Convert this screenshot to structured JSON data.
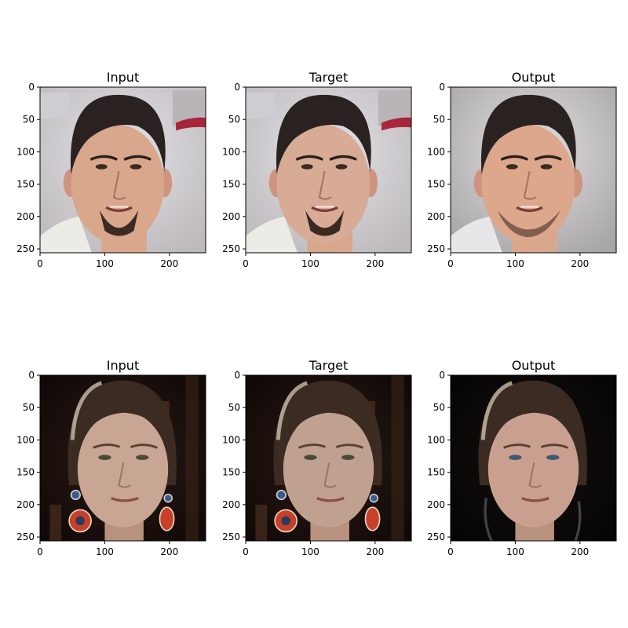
{
  "figure": {
    "rows": [
      {
        "subject": "man",
        "panels": [
          {
            "title": "Input",
            "variant": "input"
          },
          {
            "title": "Target",
            "variant": "target"
          },
          {
            "title": "Output",
            "variant": "output"
          }
        ]
      },
      {
        "subject": "woman",
        "panels": [
          {
            "title": "Input",
            "variant": "input"
          },
          {
            "title": "Target",
            "variant": "target"
          },
          {
            "title": "Output",
            "variant": "output"
          }
        ]
      }
    ],
    "x_ticks": [
      0,
      100,
      200
    ],
    "y_ticks": [
      0,
      50,
      100,
      150,
      200,
      250
    ],
    "image_extent": 256
  },
  "colors": {
    "man_background": "#d9d7dc",
    "man_skin": "#d9a78c",
    "man_hair": "#2a2220",
    "woman_background": "#1c1210",
    "woman_skin": "#c9a693",
    "woman_hair": "#3b2b22",
    "earring": "#c8402a"
  }
}
